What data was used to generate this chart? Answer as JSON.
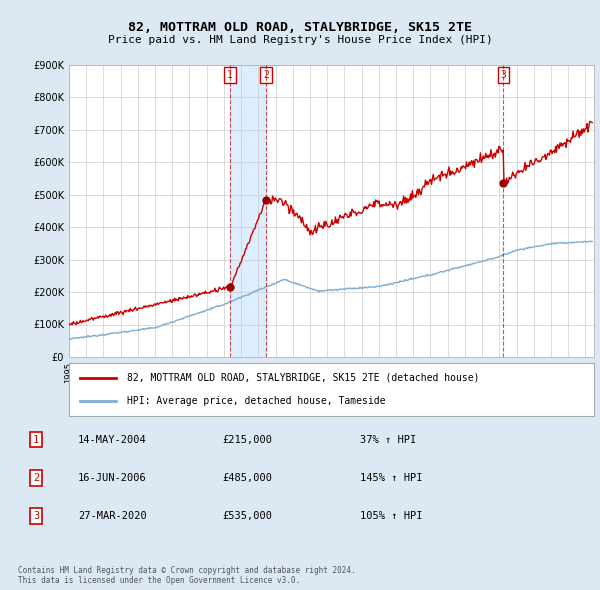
{
  "title": "82, MOTTRAM OLD ROAD, STALYBRIDGE, SK15 2TE",
  "subtitle": "Price paid vs. HM Land Registry's House Price Index (HPI)",
  "ylim": [
    0,
    900000
  ],
  "yticks": [
    0,
    100000,
    200000,
    300000,
    400000,
    500000,
    600000,
    700000,
    800000,
    900000
  ],
  "ytick_labels": [
    "£0",
    "£100K",
    "£200K",
    "£300K",
    "£400K",
    "£500K",
    "£600K",
    "£700K",
    "£800K",
    "£900K"
  ],
  "xlim_start": 1995.0,
  "xlim_end": 2025.5,
  "sale_dates": [
    2004.37,
    2006.46,
    2020.24
  ],
  "sale_prices": [
    215000,
    485000,
    535000
  ],
  "sale_labels": [
    "1",
    "2",
    "3"
  ],
  "sale_info": [
    {
      "label": "1",
      "date": "14-MAY-2004",
      "price": "£215,000",
      "hpi": "37% ↑ HPI"
    },
    {
      "label": "2",
      "date": "16-JUN-2006",
      "price": "£485,000",
      "hpi": "145% ↑ HPI"
    },
    {
      "label": "3",
      "date": "27-MAR-2020",
      "price": "£535,000",
      "hpi": "105% ↑ HPI"
    }
  ],
  "legend_property": "82, MOTTRAM OLD ROAD, STALYBRIDGE, SK15 2TE (detached house)",
  "legend_hpi": "HPI: Average price, detached house, Tameside",
  "footnote": "Contains HM Land Registry data © Crown copyright and database right 2024.\nThis data is licensed under the Open Government Licence v3.0.",
  "property_color": "#cc0000",
  "hpi_color": "#7aaed6",
  "shade_color": "#ddeeff",
  "background_color": "#dce9f5",
  "plot_bg_color": "#ffffff",
  "grid_color": "#cccccc",
  "dashed_line_color": "#cc0000",
  "dot_color": "#990000",
  "legend_border_color": "#aaaaaa"
}
